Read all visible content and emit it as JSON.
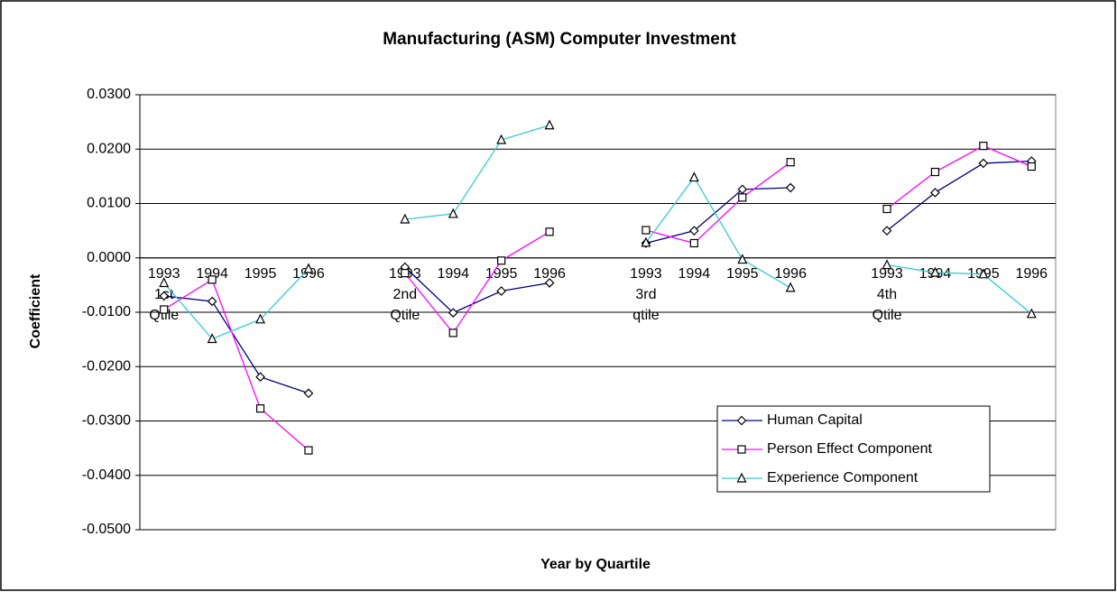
{
  "chart_data": {
    "type": "line",
    "title": "Manufacturing (ASM) Computer Investment",
    "x_label": "Year by Quartile",
    "y_label": "Coefficient",
    "categories": [
      "1993\n1st\nQtile",
      "1994",
      "1995",
      "1996",
      null,
      "1993\n2nd\nQtile",
      "1994",
      "1995",
      "1996",
      null,
      "1993\n3rd\nqtile",
      "1994",
      "1995",
      "1996",
      null,
      "1993\n4th\nQtile",
      "1994",
      "1995",
      "1996"
    ],
    "series": [
      {
        "name": "Human Capital",
        "color": "#000080",
        "marker": "diamond",
        "values": [
          -0.007,
          -0.008,
          -0.0219,
          -0.0249,
          null,
          -0.0017,
          -0.0101,
          -0.0061,
          -0.0046,
          null,
          0.0027,
          0.005,
          0.0126,
          0.0129,
          null,
          0.005,
          0.012,
          0.0174,
          0.0178
        ]
      },
      {
        "name": "Person Effect Component",
        "color": "#ff00ff",
        "marker": "square",
        "values": [
          -0.0095,
          -0.004,
          -0.0277,
          -0.0354,
          null,
          -0.0028,
          -0.0138,
          -0.0005,
          0.0048,
          null,
          0.0051,
          0.0027,
          0.0111,
          0.0176,
          null,
          0.009,
          0.0158,
          0.0206,
          0.0168
        ]
      },
      {
        "name": "Experience Component",
        "color": "#33cccc",
        "marker": "triangle",
        "values": [
          -0.0046,
          -0.0149,
          -0.0113,
          -0.002,
          null,
          0.0071,
          0.0081,
          0.0217,
          0.0244,
          null,
          0.0028,
          0.0148,
          -0.0003,
          -0.0055,
          null,
          -0.0013,
          -0.0027,
          -0.003,
          -0.0103
        ]
      }
    ],
    "ylim": [
      -0.05,
      0.03
    ],
    "yticks": [
      {
        "value": -0.05,
        "label": "-0.0500"
      },
      {
        "value": -0.04,
        "label": "-0.0400"
      },
      {
        "value": -0.03,
        "label": "-0.0300"
      },
      {
        "value": -0.02,
        "label": "-0.0200"
      },
      {
        "value": -0.01,
        "label": "-0.0100"
      },
      {
        "value": 0,
        "label": "0.0000"
      },
      {
        "value": 0.01,
        "label": "0.0100"
      },
      {
        "value": 0.02,
        "label": "0.0200"
      },
      {
        "value": 0.03,
        "label": "0.0300"
      }
    ],
    "grid": true,
    "legend": "lower right"
  }
}
